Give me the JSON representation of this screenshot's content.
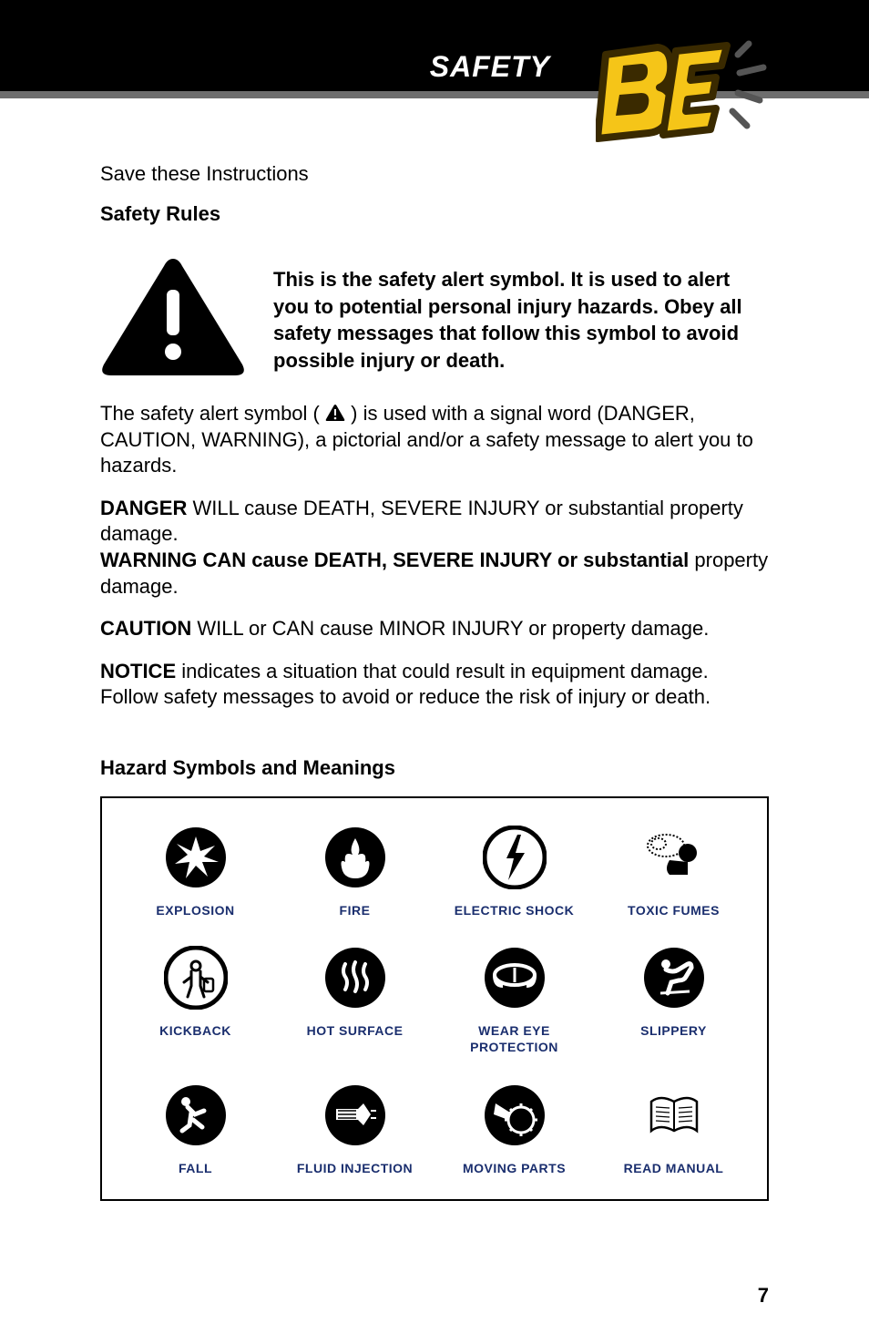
{
  "header": {
    "title": "SAFETY",
    "logo_text": "BE"
  },
  "content": {
    "save_instructions": "Save these Instructions",
    "safety_rules_heading": "Safety Rules",
    "alert_main": "This is the safety alert symbol. It is used to alert you to potential personal injury hazards. Obey all safety messages that follow this symbol to avoid possible injury or death.",
    "para_symbol_pre": "The safety alert symbol (",
    "para_symbol_post": ") is used with a signal word (DANGER, CAUTION, WARNING), a pictorial and/or a safety message to alert you to hazards.",
    "danger_bold": "DANGER",
    "danger_text": " WILL cause DEATH, SEVERE INJURY or substantial property damage.",
    "warning_bold": "WARNING CAN cause DEATH, SEVERE INJURY or substantial",
    "warning_text": " property damage.",
    "caution_bold": "CAUTION",
    "caution_text": " WILL or CAN cause MINOR INJURY or property damage.",
    "notice_bold": "NOTICE",
    "notice_text": " indicates a situation that could result in equipment damage. Follow safety messages to avoid or reduce the risk of injury or death.",
    "hazard_heading": "Hazard Symbols and Meanings"
  },
  "hazards": [
    {
      "label": "EXPLOSION",
      "icon": "explosion"
    },
    {
      "label": "FIRE",
      "icon": "fire"
    },
    {
      "label": "ELECTRIC SHOCK",
      "icon": "shock"
    },
    {
      "label": "TOXIC FUMES",
      "icon": "fumes"
    },
    {
      "label": "KICKBACK",
      "icon": "kickback"
    },
    {
      "label": "HOT SURFACE",
      "icon": "hot"
    },
    {
      "label": "WEAR EYE PROTECTION",
      "icon": "eye"
    },
    {
      "label": "SLIPPERY",
      "icon": "slippery"
    },
    {
      "label": "FALL",
      "icon": "fall"
    },
    {
      "label": "FLUID INJECTION",
      "icon": "fluid"
    },
    {
      "label": "MOVING PARTS",
      "icon": "moving"
    },
    {
      "label": "READ MANUAL",
      "icon": "manual"
    }
  ],
  "page_number": "7",
  "colors": {
    "label_color": "#1a2e6e",
    "header_bg": "#000000",
    "stripe_bg": "#6e6e6e",
    "logo_yellow": "#f5c518",
    "logo_stroke": "#3a2a00"
  },
  "icon_size": 70
}
